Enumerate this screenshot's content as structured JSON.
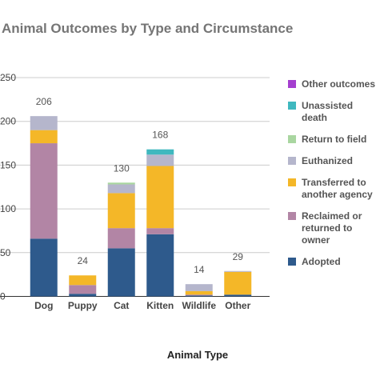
{
  "chart_data": {
    "type": "bar",
    "stacked": true,
    "title": "Animal Outcomes by Type and Circumstance",
    "xlabel": "Animal Type",
    "ylabel": "",
    "ylim": [
      0,
      250
    ],
    "yticks": [
      "250",
      "200",
      "150",
      "100",
      "50",
      "0"
    ],
    "categories": [
      "Dog",
      "Puppy",
      "Cat",
      "Kitten",
      "Wildlife",
      "Other"
    ],
    "totals": [
      "206",
      "24",
      "130",
      "168",
      "14",
      "29"
    ],
    "grid": true,
    "legend_position": "right",
    "series": [
      {
        "name": "Adopted",
        "color": "#2e5a8c",
        "values": [
          66,
          3,
          55,
          71,
          1,
          2
        ]
      },
      {
        "name": "Reclaimed or returned to owner",
        "color": "#b285a5",
        "values": [
          109,
          10,
          23,
          7,
          1,
          0
        ]
      },
      {
        "name": "Transferred to another agency",
        "color": "#f4b728",
        "values": [
          15,
          11,
          40,
          71,
          4,
          26
        ]
      },
      {
        "name": "Euthanized",
        "color": "#b5b6cc",
        "values": [
          16,
          0,
          10,
          13,
          8,
          1
        ]
      },
      {
        "name": "Return to field",
        "color": "#a9d6a0",
        "values": [
          0,
          0,
          2,
          0,
          0,
          0
        ]
      },
      {
        "name": "Unassisted death",
        "color": "#3fb8bf",
        "values": [
          0,
          0,
          0,
          6,
          0,
          0
        ]
      },
      {
        "name": "Other outcomes",
        "color": "#a43fcf",
        "values": [
          0,
          0,
          0,
          0,
          0,
          0
        ]
      }
    ],
    "legend_order": [
      "Other outcomes",
      "Unassisted death",
      "Return to field",
      "Euthanized",
      "Transferred to another agency",
      "Reclaimed or returned to owner",
      "Adopted"
    ],
    "legend_lines": [
      [
        "Other outcomes"
      ],
      [
        "Unassisted",
        "death"
      ],
      [
        "Return to field"
      ],
      [
        "Euthanized"
      ],
      [
        "Transferred to",
        "another agency"
      ],
      [
        "Reclaimed or",
        "returned to",
        "owner"
      ],
      [
        "Adopted"
      ]
    ]
  }
}
